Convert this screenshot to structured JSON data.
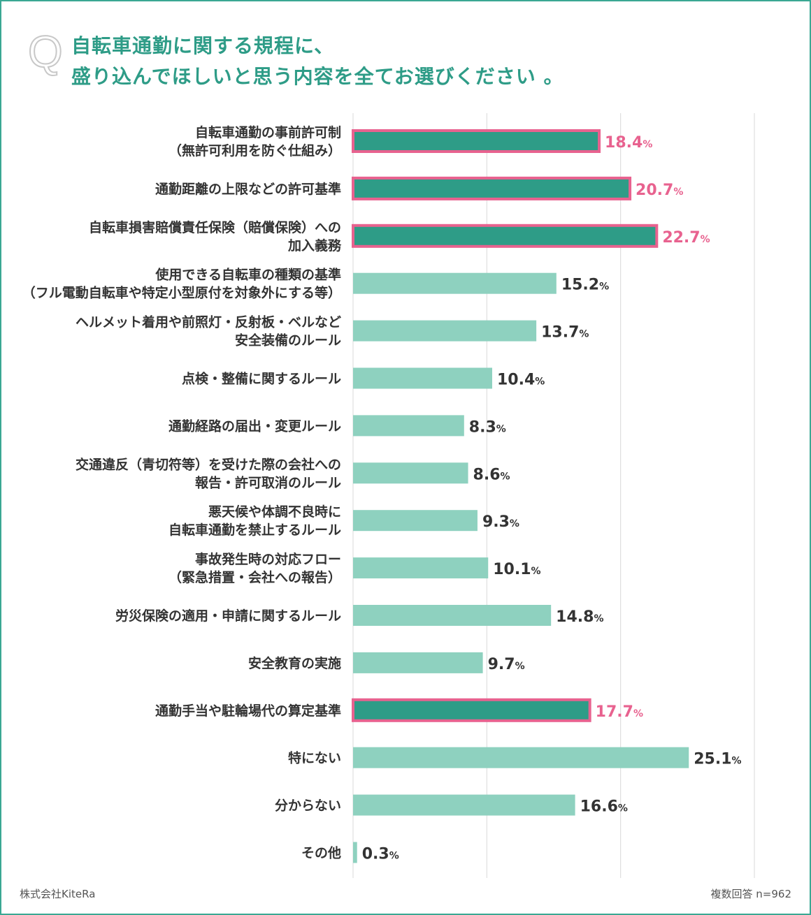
{
  "question": {
    "mark": "Q",
    "lines": [
      "自転車通勤に関する規程に、",
      "盛り込んでほしいと思う内容を全てお選びください 。"
    ]
  },
  "chart_data": {
    "type": "bar",
    "orientation": "horizontal",
    "xlim": [
      0,
      30
    ],
    "grid": true,
    "unit": "%",
    "categories": [
      [
        "自転車通勤の事前許可制",
        "（無許可利用を防ぐ仕組み）"
      ],
      [
        "通勤距離の上限などの許可基準"
      ],
      [
        "自転車損害賠償責任保険（賠償保険）への",
        "加入義務"
      ],
      [
        "使用できる自転車の種類の基準",
        "（フル電動自転車や特定小型原付を対象外にする等）"
      ],
      [
        "ヘルメット着用や前照灯・反射板・ベルなど",
        "安全装備のルール"
      ],
      [
        "点検・整備に関するルール"
      ],
      [
        "通勤経路の届出・変更ルール"
      ],
      [
        "交通違反（青切符等）を受けた際の会社への",
        "報告・許可取消のルール"
      ],
      [
        "悪天候や体調不良時に",
        "自転車通勤を禁止するルール"
      ],
      [
        "事故発生時の対応フロー",
        "（緊急措置・会社への報告）"
      ],
      [
        "労災保険の適用・申請に関するルール"
      ],
      [
        "安全教育の実施"
      ],
      [
        "通勤手当や駐輪場代の算定基準"
      ],
      [
        "特にない"
      ],
      [
        "分からない"
      ],
      [
        "その他"
      ]
    ],
    "values": [
      18.4,
      20.7,
      22.7,
      15.2,
      13.7,
      10.4,
      8.3,
      8.6,
      9.3,
      10.1,
      14.8,
      9.7,
      17.7,
      25.1,
      16.6,
      0.3
    ],
    "highlighted": [
      true,
      true,
      true,
      false,
      false,
      false,
      false,
      false,
      false,
      false,
      false,
      false,
      true,
      false,
      false,
      false
    ],
    "colors": {
      "bar": "#8ed1bf",
      "highlight_bar": "#2e9c87",
      "highlight_border": "#e8628f",
      "highlight_text": "#e8628f",
      "text": "#333333",
      "grid": "#d9d9d9",
      "title": "#2e9c87",
      "frame": "#3aa893"
    }
  },
  "footer": {
    "company": "株式会社KiteRa",
    "note": "複数回答 n=962"
  }
}
